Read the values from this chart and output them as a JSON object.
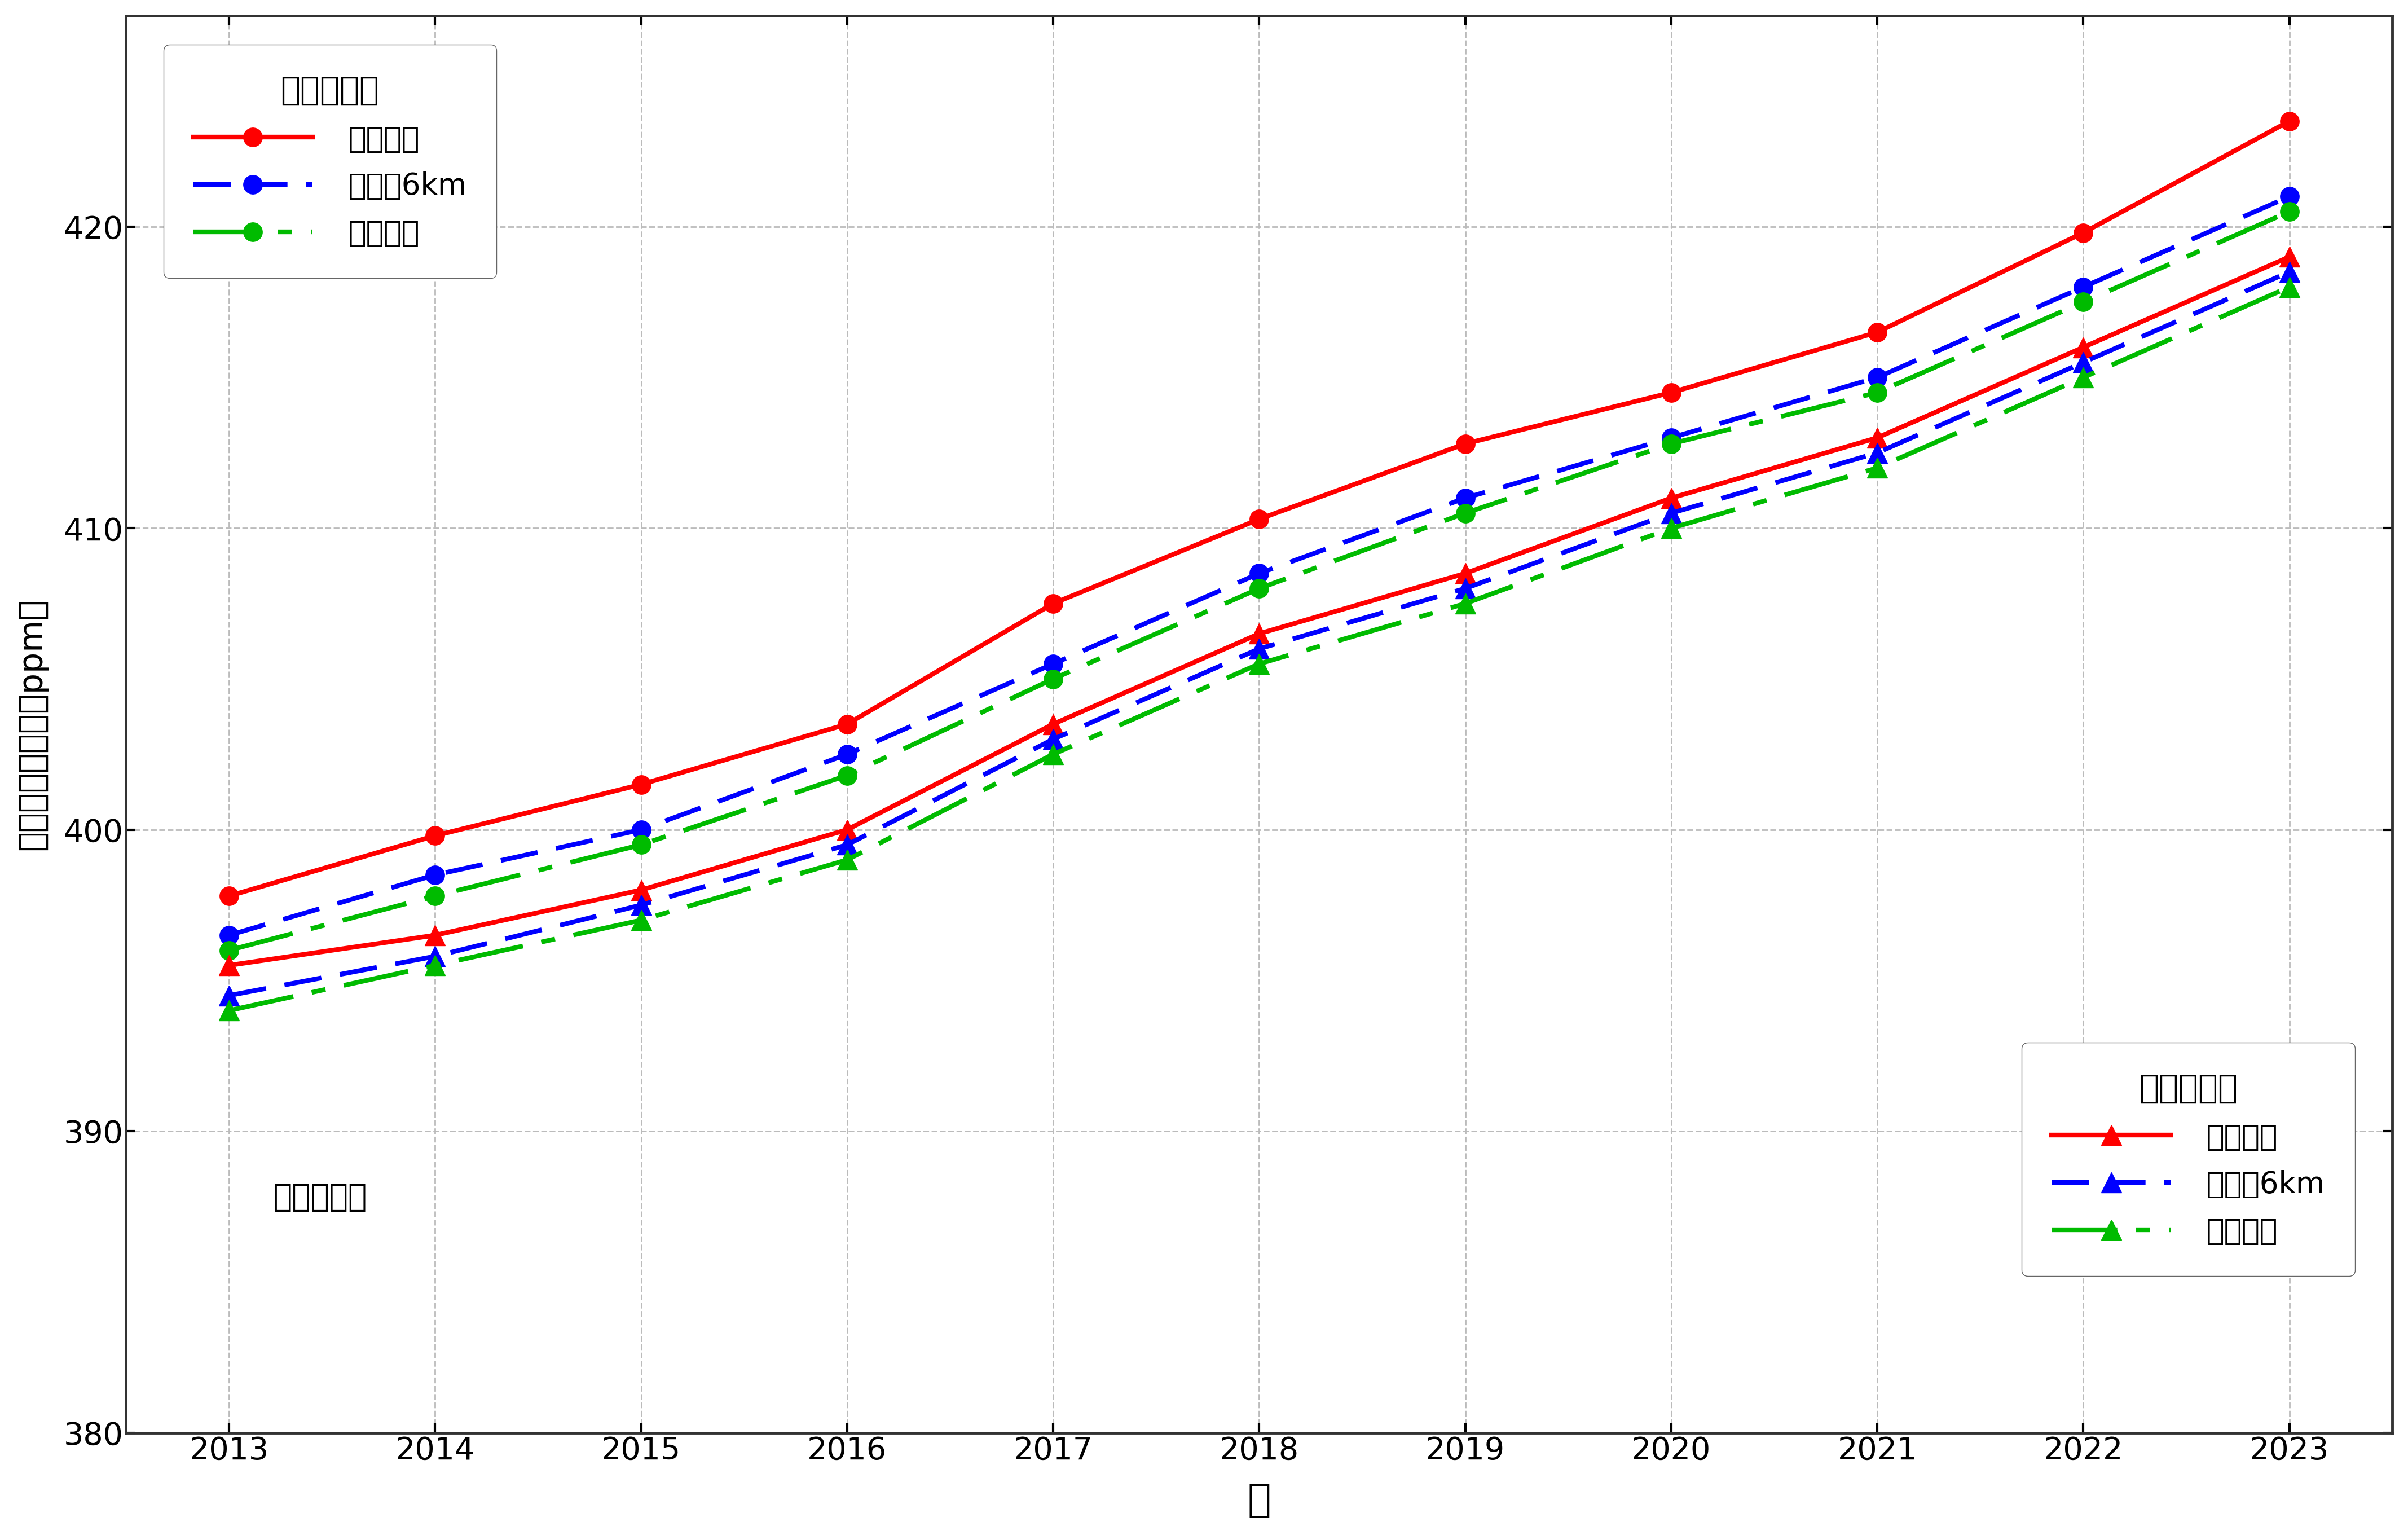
{
  "years": [
    2013,
    2014,
    2015,
    2016,
    2017,
    2018,
    2019,
    2020,
    2021,
    2022,
    2023
  ],
  "north_surface": [
    397.8,
    399.8,
    401.5,
    403.5,
    407.5,
    410.3,
    412.8,
    414.5,
    416.5,
    419.8,
    423.5
  ],
  "north_6km": [
    396.5,
    398.5,
    400.0,
    402.5,
    405.5,
    408.5,
    411.0,
    413.0,
    415.0,
    418.0,
    421.0
  ],
  "north_column": [
    396.0,
    397.8,
    399.5,
    401.8,
    405.0,
    408.0,
    410.5,
    412.8,
    414.5,
    417.5,
    420.5
  ],
  "south_surface": [
    395.5,
    396.5,
    398.0,
    400.0,
    403.5,
    406.5,
    408.5,
    411.0,
    413.0,
    416.0,
    419.0
  ],
  "south_6km": [
    394.5,
    395.8,
    397.5,
    399.5,
    403.0,
    406.0,
    408.0,
    410.5,
    412.5,
    415.5,
    418.5
  ],
  "south_column": [
    394.0,
    395.5,
    397.0,
    399.0,
    402.5,
    405.5,
    407.5,
    410.0,
    412.0,
    415.0,
    418.0
  ],
  "ylim": [
    380,
    427
  ],
  "yticks": [
    380,
    390,
    400,
    410,
    420
  ],
  "colors": {
    "red": "#ff0000",
    "blue": "#0000ff",
    "green": "#00bb00"
  },
  "north_legend_title": "北半球平均",
  "south_legend_title": "南半球平均",
  "label_surface": "地表付近",
  "label_6km": "高度分6km",
  "label_column": "気柱平均",
  "xlabel": "年",
  "ylabel": "二酸化炭素濃度（ppm）",
  "annot": "年平均濃度",
  "background_color": "#ffffff",
  "grid_color": "#bbbbbb"
}
